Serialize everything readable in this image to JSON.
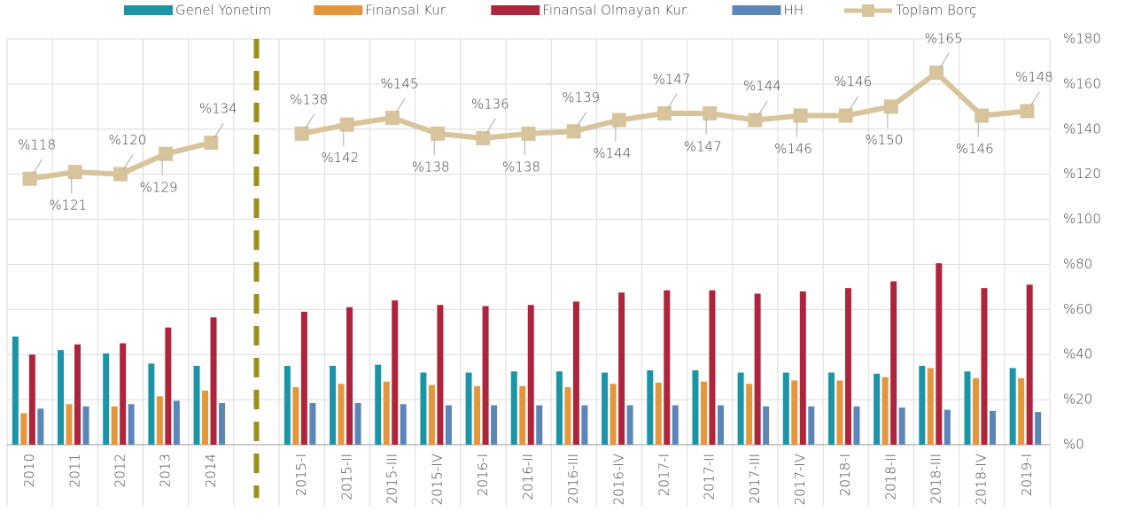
{
  "chart_data": {
    "type": "bar",
    "categories": [
      "2010",
      "2011",
      "2012",
      "2013",
      "2014",
      null,
      "2015-I",
      "2015-II",
      "2015-III",
      "2015-IV",
      "2016-I",
      "2016-II",
      "2016-III",
      "2016-IV",
      "2017-I",
      "2017-II",
      "2017-III",
      "2017-IV",
      "2018-I",
      "2018-II",
      "2018-III",
      "2018-IV",
      "2019-I"
    ],
    "ylim": [
      0,
      180
    ],
    "yticks": [
      {
        "value": 0,
        "label": "%0"
      },
      {
        "value": 20,
        "label": "%20"
      },
      {
        "value": 40,
        "label": "%40"
      },
      {
        "value": 60,
        "label": "%60"
      },
      {
        "value": 80,
        "label": "%80"
      },
      {
        "value": 100,
        "label": "%100"
      },
      {
        "value": 120,
        "label": "%120"
      },
      {
        "value": 140,
        "label": "%140"
      },
      {
        "value": 160,
        "label": "%160"
      },
      {
        "value": 180,
        "label": "%180"
      }
    ],
    "grid": true,
    "legend": "top",
    "series": [
      {
        "name": "Genel Yönetim",
        "type": "bar",
        "color": "#1b95a6",
        "values": [
          48,
          42,
          40.5,
          36,
          35,
          null,
          35,
          35,
          35.5,
          32,
          32,
          32.5,
          32.5,
          32,
          33,
          33,
          32,
          32,
          32,
          31.5,
          35,
          32.5,
          34
        ]
      },
      {
        "name": "Finansal Kur.",
        "type": "bar",
        "color": "#e5953a",
        "values": [
          14,
          18,
          17,
          21.5,
          24,
          null,
          25.5,
          27,
          28,
          26.5,
          26,
          26,
          25.5,
          27,
          27.5,
          28,
          27,
          28.5,
          28.5,
          30,
          34,
          29.5,
          29.5
        ]
      },
      {
        "name": "Finansal Olmayan Kur.",
        "type": "bar",
        "color": "#b0243b",
        "values": [
          40,
          44.5,
          45,
          52,
          56.5,
          null,
          59,
          61,
          64,
          62,
          61.5,
          62,
          63.5,
          67.5,
          68.5,
          68.5,
          67,
          68,
          69.5,
          72.5,
          80.5,
          69.5,
          71
        ]
      },
      {
        "name": "HH",
        "type": "bar",
        "color": "#5b87b8",
        "values": [
          16,
          17,
          18,
          19.5,
          18.5,
          null,
          18.5,
          18.5,
          18,
          17.5,
          17.5,
          17.5,
          17.5,
          17.5,
          17.5,
          17.5,
          17,
          17,
          17,
          16.5,
          15.5,
          15,
          14.5
        ]
      },
      {
        "name": "Toplam Borç",
        "type": "line",
        "color": "#d8c49c",
        "values": [
          118,
          121,
          120,
          129,
          134,
          null,
          138,
          142,
          145,
          138,
          136,
          138,
          139,
          144,
          147,
          147,
          144,
          146,
          146,
          150,
          165,
          146,
          148
        ],
        "value_labels": [
          "%118",
          "%121",
          "%120",
          "%129",
          "%134",
          null,
          "%138",
          "%142",
          "%145",
          "%138",
          "%136",
          "%138",
          "%139",
          "%144",
          "%147",
          "%147",
          "%144",
          "%146",
          "%146",
          "%150",
          "%165",
          "%146",
          "%148"
        ]
      }
    ]
  }
}
